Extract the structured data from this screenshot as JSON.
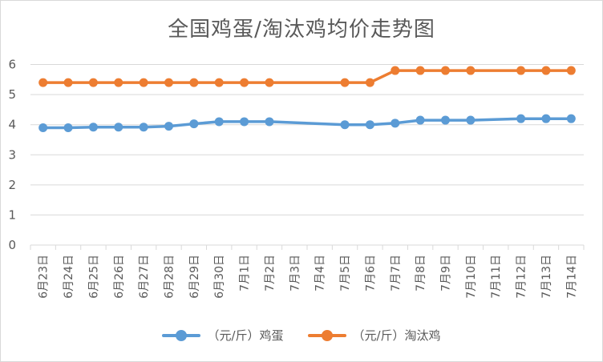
{
  "colors": {
    "egg": "#5b9bd5",
    "hen": "#ed7d31",
    "grid": "#d9d9d9",
    "text": "#595959"
  },
  "chart_data": {
    "type": "line",
    "title": "全国鸡蛋/淘汰鸡均价走势图",
    "categories": [
      "6月23日",
      "6月24日",
      "6月25日",
      "6月26日",
      "6月27日",
      "6月28日",
      "6月29日",
      "6月30日",
      "7月1日",
      "7月2日",
      "7月3日",
      "7月4日",
      "7月5日",
      "7月6日",
      "7月7日",
      "7月8日",
      "7月9日",
      "7月10日",
      "7月11日",
      "7月12日",
      "7月13日",
      "7月14日"
    ],
    "series": [
      {
        "name": "（元/斤）鸡蛋",
        "color_key": "egg",
        "values": [
          3.9,
          3.9,
          3.92,
          3.92,
          3.92,
          3.95,
          4.03,
          4.1,
          4.1,
          4.1,
          null,
          null,
          4.0,
          4.0,
          4.05,
          4.15,
          4.15,
          4.15,
          null,
          4.2,
          4.2,
          4.2
        ]
      },
      {
        "name": "（元/斤）淘汰鸡",
        "color_key": "hen",
        "values": [
          5.4,
          5.4,
          5.4,
          5.4,
          5.4,
          5.4,
          5.4,
          5.4,
          5.4,
          5.4,
          null,
          null,
          5.4,
          5.4,
          5.8,
          5.8,
          5.8,
          5.8,
          null,
          5.8,
          5.8,
          5.8
        ]
      }
    ],
    "yticks": [
      0,
      1,
      2,
      3,
      4,
      5,
      6
    ],
    "ylim": [
      0,
      6.6
    ],
    "grid": true,
    "legend_position": "bottom"
  }
}
